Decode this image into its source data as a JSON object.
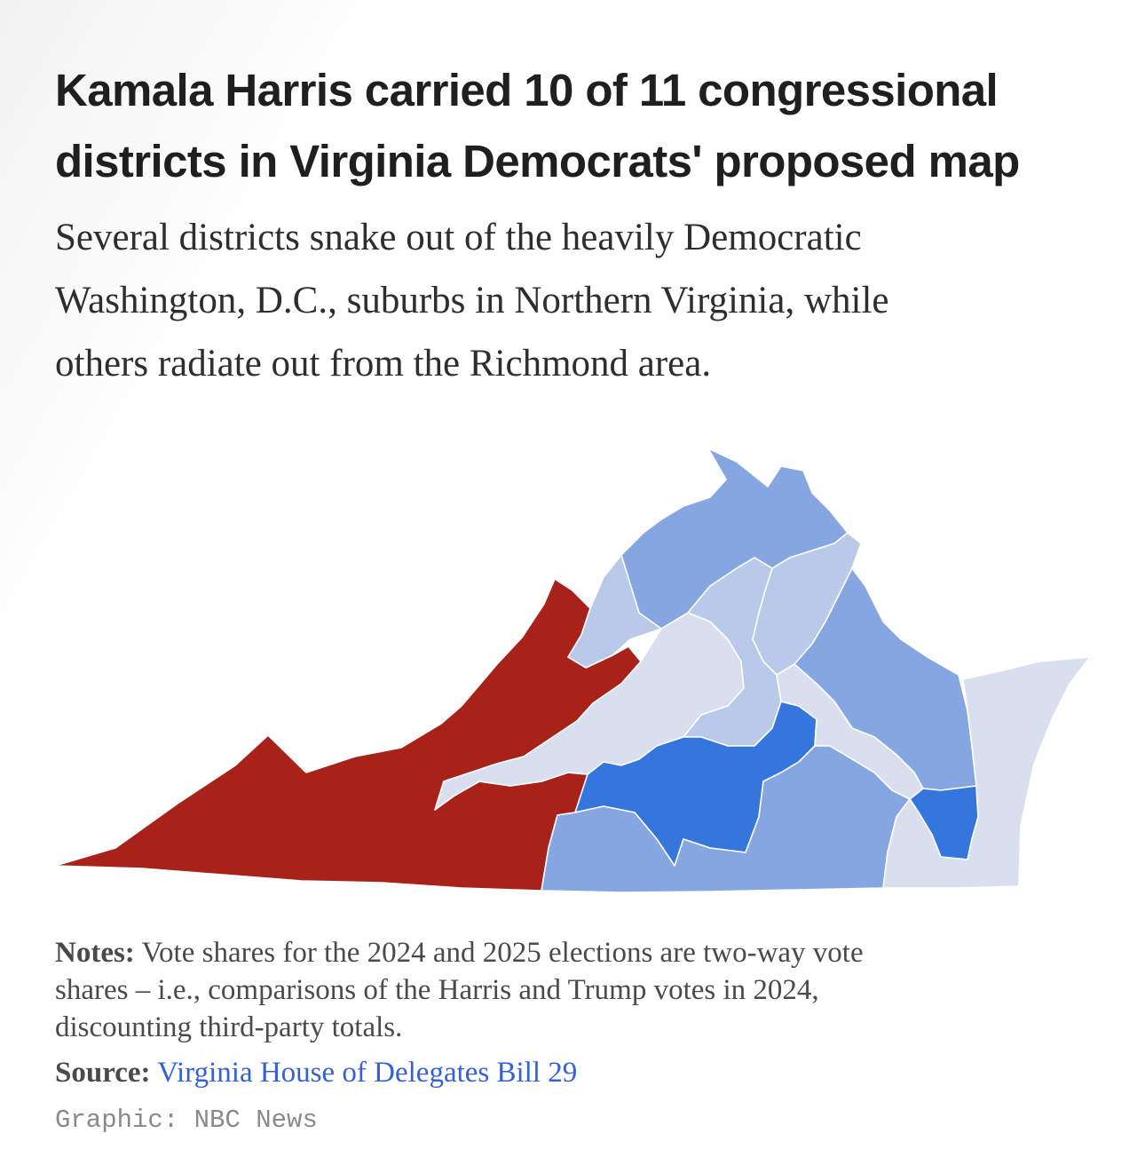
{
  "headline": {
    "line1": "Kamala Harris carried 10 of 11 congressional",
    "line2": "districts in Virginia Democrats' proposed map"
  },
  "dek": {
    "line1": "Several districts snake out of the heavily Democratic",
    "line2": "Washington, D.C., suburbs in Northern Virginia, while",
    "line3": "others radiate out from the Richmond area."
  },
  "map": {
    "region": "Virginia",
    "districts_total": 11,
    "districts_harris": 10,
    "colors": {
      "red": "#a82219",
      "blue_dark": "#3475de",
      "blue_medium": "#86a6e2",
      "blue_light": "#b9c9e9",
      "blue_pale": "#d9dfee",
      "border": "#ffffff"
    }
  },
  "notes": {
    "label": "Notes:",
    "line1": "Vote shares for the 2024 and 2025 elections are two-way vote",
    "line2": "shares – i.e., comparisons of the Harris and Trump votes in 2024,",
    "line3": "discounting third-party totals."
  },
  "source": {
    "label": "Source:",
    "link_text": "Virginia House of Delegates Bill 29"
  },
  "credit": "Graphic: NBC News"
}
